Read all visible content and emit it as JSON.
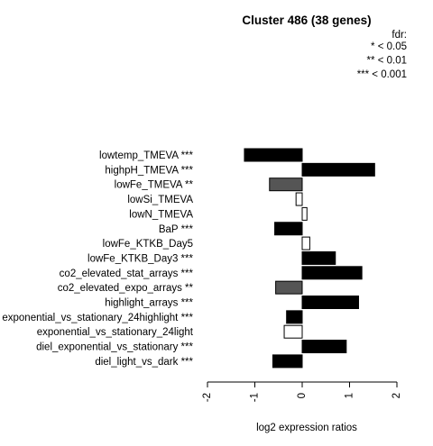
{
  "chart_data": {
    "type": "bar",
    "orientation": "horizontal",
    "title": "Cluster 486 (38 genes)",
    "xlabel": "log2 expression ratios",
    "ylabel": "",
    "xlim": [
      -2,
      2
    ],
    "xticks": [
      "-2",
      "-1",
      "0",
      "1",
      "2"
    ],
    "legend": {
      "title": "fdr:",
      "entries": [
        "* < 0.05",
        "** < 0.01",
        "*** < 0.001"
      ],
      "placement": "top-right"
    },
    "categories": [
      "lowtemp_TMEVA ***",
      "highpH_TMEVA ***",
      "lowFe_TMEVA **",
      "lowSi_TMEVA",
      "lowN_TMEVA",
      "BaP ***",
      "lowFe_KTKB_Day5",
      "lowFe_KTKB_Day3 ***",
      "co2_elevated_stat_arrays ***",
      "co2_elevated_expo_arrays **",
      "highlight_arrays ***",
      "exponential_vs_stationary_24highlight ***",
      "exponential_vs_stationary_24light",
      "diel_exponential_vs_stationary ***",
      "diel_light_vs_dark ***"
    ],
    "values": [
      -1.22,
      1.53,
      -0.69,
      -0.13,
      0.1,
      -0.58,
      0.16,
      0.7,
      1.26,
      -0.56,
      1.19,
      -0.33,
      -0.38,
      0.93,
      -0.62
    ],
    "significance": [
      "***",
      "***",
      "**",
      "",
      "",
      "***",
      "",
      "***",
      "***",
      "**",
      "***",
      "***",
      "",
      "***",
      "***"
    ],
    "colors": {
      "***": "#000000",
      "**": "#555555",
      "*": "#aaaaaa",
      "": "#ffffff",
      "stroke": "#000000"
    }
  }
}
